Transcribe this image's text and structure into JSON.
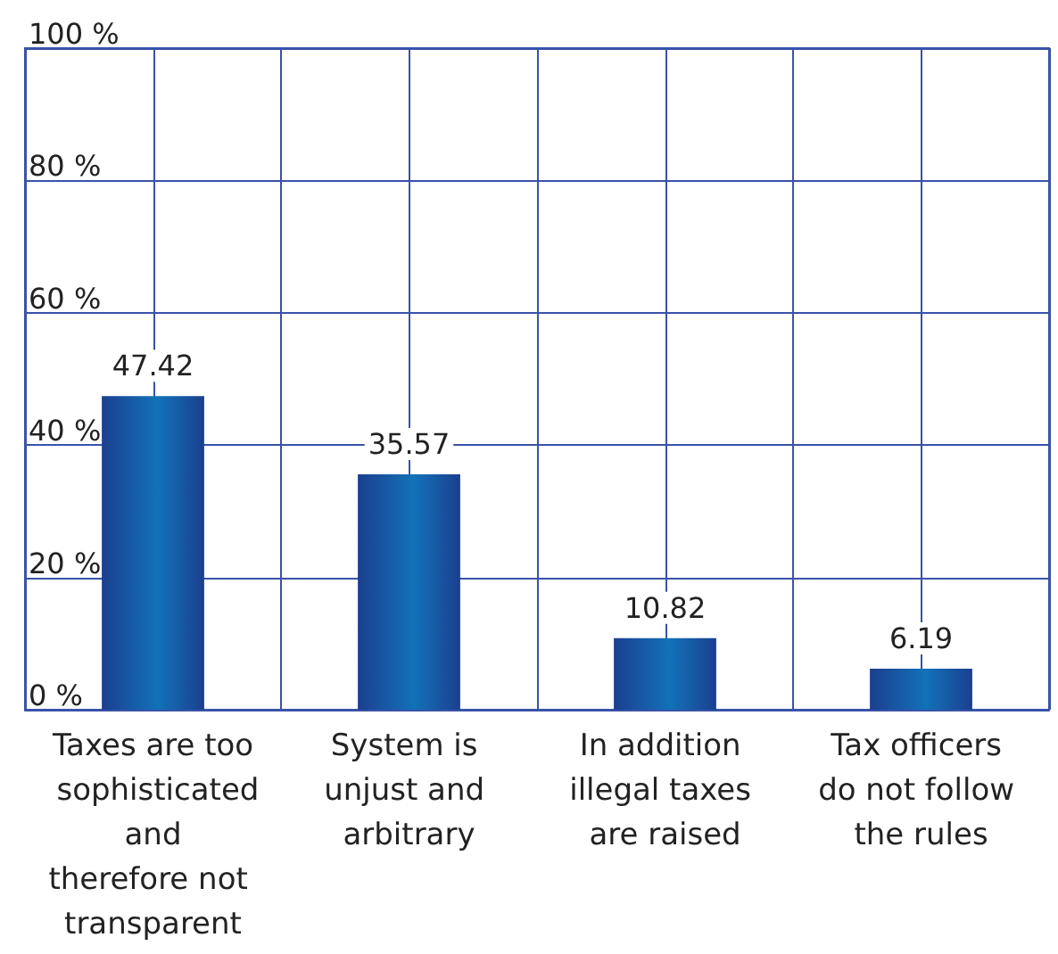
{
  "chart_data": {
    "type": "bar",
    "categories": [
      "Taxes are too sophisticated and therefore not transparent",
      "System is unjust and arbitrary",
      "In addition illegal taxes are raised",
      "Tax officers do not follow the rules"
    ],
    "values": [
      47.42,
      35.57,
      10.82,
      6.19
    ],
    "color": "#1272b8",
    "data_labels": true,
    "grid": true,
    "ylim": [
      0,
      100
    ],
    "yticks": [
      {
        "value": 0,
        "label": "0 %"
      },
      {
        "value": 20,
        "label": "20 %"
      },
      {
        "value": 40,
        "label": "40 %"
      },
      {
        "value": 60,
        "label": "60 %"
      },
      {
        "value": 80,
        "label": "80 %"
      },
      {
        "value": 100,
        "label": "100 %"
      }
    ]
  }
}
